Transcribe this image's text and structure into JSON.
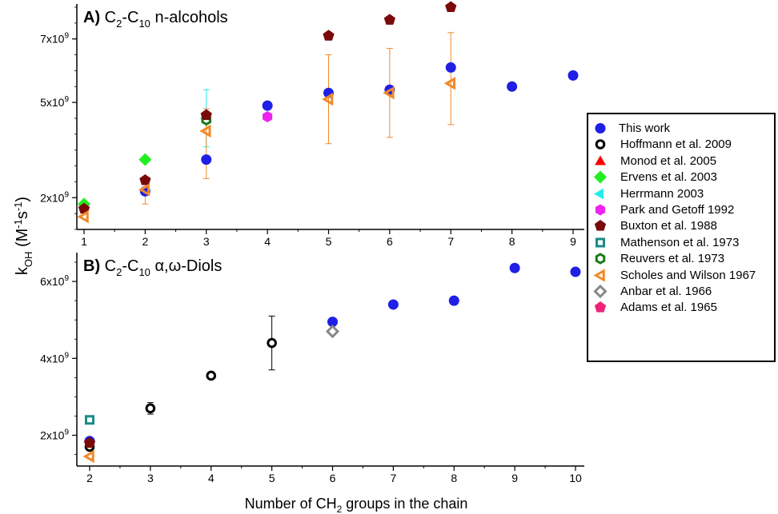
{
  "colors": {
    "this_work": "#1f1fe6",
    "hoffmann": "#000000",
    "monod": "#ff0000",
    "ervens": "#22ee22",
    "herrmann": "#22eeee",
    "park": "#ee22ee",
    "buxton": "#7a0a0a",
    "mathenson": "#1a8a8a",
    "reuvers": "#1a7a1a",
    "scholes": "#f08a2a",
    "anbar": "#888888",
    "adams": "#ee2277"
  },
  "chart_data": [
    {
      "panel": "A",
      "type": "scatter",
      "title_prefix": "A)",
      "title_main": "C",
      "title_sub1": "2",
      "title_mid": "-C",
      "title_sub2": "10",
      "title_rest": " n-alcohols",
      "x_ticks": [
        "1",
        "2",
        "3",
        "4",
        "5",
        "6",
        "7",
        "8",
        "9"
      ],
      "xlim": [
        1,
        9
      ],
      "ylim": [
        1000000000.0,
        8100000000.0
      ],
      "y_ticks": [
        {
          "value": 2000000000.0,
          "base": "2x10",
          "exp": "9"
        },
        {
          "value": 5000000000.0,
          "base": "5x10",
          "exp": "9"
        },
        {
          "value": 7000000000.0,
          "base": "7x10",
          "exp": "9"
        }
      ],
      "series": [
        {
          "key": "this_work",
          "marker": "circle",
          "points": [
            [
              2,
              2200000000.0
            ],
            [
              3,
              3200000000.0
            ],
            [
              4,
              4900000000.0
            ],
            [
              5,
              5300000000.0
            ],
            [
              6,
              5400000000.0
            ],
            [
              7,
              6100000000.0
            ],
            [
              8,
              5500000000.0
            ],
            [
              9,
              5850000000.0
            ]
          ]
        },
        {
          "key": "ervens",
          "marker": "diamond",
          "points": [
            [
              1,
              1800000000.0
            ],
            [
              2,
              3200000000.0
            ]
          ]
        },
        {
          "key": "herrmann",
          "marker": "triangle-left",
          "points": [
            [
              3,
              4500000000.0
            ]
          ],
          "err": [
            [
              3,
              5400000000.0,
              3600000000.0
            ]
          ]
        },
        {
          "key": "reuvers",
          "marker": "hexagon-open",
          "points": [
            [
              3,
              4450000000.0
            ]
          ]
        },
        {
          "key": "park",
          "marker": "hexagon",
          "points": [
            [
              4,
              4550000000.0
            ]
          ]
        },
        {
          "key": "buxton",
          "marker": "pentagon",
          "points": [
            [
              1,
              1650000000.0
            ],
            [
              2,
              2550000000.0
            ],
            [
              3,
              4600000000.0
            ],
            [
              5,
              7100000000.0
            ],
            [
              6,
              7600000000.0
            ],
            [
              7,
              8000000000.0
            ]
          ]
        },
        {
          "key": "scholes",
          "marker": "triangle-left-open",
          "points": [
            [
              1,
              1400000000.0
            ],
            [
              2,
              2250000000.0
            ],
            [
              3,
              4100000000.0
            ],
            [
              5,
              5100000000.0
            ],
            [
              6,
              5300000000.0
            ],
            [
              7,
              5600000000.0
            ]
          ],
          "err": [
            [
              2,
              2450000000.0,
              1800000000.0
            ],
            [
              3,
              4800000000.0,
              2600000000.0
            ],
            [
              5,
              6500000000.0,
              3700000000.0
            ],
            [
              6,
              6700000000.0,
              3900000000.0
            ],
            [
              7,
              7200000000.0,
              4300000000.0
            ]
          ]
        }
      ]
    },
    {
      "panel": "B",
      "type": "scatter",
      "title_prefix": "B)",
      "title_main": "C",
      "title_sub1": "2",
      "title_mid": "-C",
      "title_sub2": "10",
      "title_rest": " α,ω-Diols",
      "x_ticks": [
        "2",
        "3",
        "4",
        "5",
        "6",
        "7",
        "8",
        "9",
        "10"
      ],
      "xlim": [
        2,
        10
      ],
      "ylim": [
        1200000000.0,
        6750000000.0
      ],
      "y_ticks": [
        {
          "value": 2000000000.0,
          "base": "2x10",
          "exp": "9"
        },
        {
          "value": 4000000000.0,
          "base": "4x10",
          "exp": "9"
        },
        {
          "value": 6000000000.0,
          "base": "6x10",
          "exp": "9"
        }
      ],
      "series": [
        {
          "key": "this_work",
          "marker": "circle",
          "points": [
            [
              2,
              1850000000.0
            ],
            [
              6,
              4950000000.0
            ],
            [
              7,
              5400000000.0
            ],
            [
              8,
              5500000000.0
            ],
            [
              9,
              6350000000.0
            ],
            [
              10,
              6250000000.0
            ]
          ]
        },
        {
          "key": "hoffmann",
          "marker": "circle-open",
          "points": [
            [
              2,
              1700000000.0
            ],
            [
              3,
              2700000000.0
            ],
            [
              4,
              3550000000.0
            ],
            [
              5,
              4400000000.0
            ]
          ],
          "err": [
            [
              3,
              2850000000.0,
              2550000000.0
            ],
            [
              5,
              5100000000.0,
              3700000000.0
            ]
          ]
        },
        {
          "key": "mathenson",
          "marker": "square-open",
          "points": [
            [
              2,
              2400000000.0
            ]
          ]
        },
        {
          "key": "buxton",
          "marker": "pentagon",
          "points": [
            [
              2,
              1800000000.0
            ]
          ]
        },
        {
          "key": "anbar",
          "marker": "diamond-open",
          "points": [
            [
              6,
              4700000000.0
            ]
          ]
        },
        {
          "key": "scholes",
          "marker": "triangle-left-open",
          "points": [
            [
              2,
              1450000000.0
            ]
          ]
        }
      ]
    }
  ],
  "axis": {
    "x_label_pre": "Number of CH",
    "x_label_sub": "2",
    "x_label_post": " groups in the chain",
    "y_label_k": "k",
    "y_label_sub": "OH",
    "y_label_unit_open": " (M",
    "y_label_exp1": "-1",
    "y_label_s": "s",
    "y_label_exp2": "-1",
    "y_label_close": ")"
  },
  "legend": [
    {
      "key": "this_work",
      "marker": "circle",
      "label": "This work"
    },
    {
      "key": "hoffmann",
      "marker": "circle-open",
      "label": "Hoffmann et al. 2009"
    },
    {
      "key": "monod",
      "marker": "triangle-up",
      "label": "Monod et al. 2005"
    },
    {
      "key": "ervens",
      "marker": "diamond",
      "label": "Ervens et al. 2003"
    },
    {
      "key": "herrmann",
      "marker": "triangle-left",
      "label": "Herrmann 2003"
    },
    {
      "key": "park",
      "marker": "hexagon",
      "label": "Park and Getoff 1992"
    },
    {
      "key": "buxton",
      "marker": "pentagon",
      "label": "Buxton et al. 1988"
    },
    {
      "key": "mathenson",
      "marker": "square-open",
      "label": "Mathenson et al. 1973"
    },
    {
      "key": "reuvers",
      "marker": "hexagon-open",
      "label": "Reuvers et al. 1973"
    },
    {
      "key": "scholes",
      "marker": "triangle-left-open",
      "label": "Scholes and Wilson 1967"
    },
    {
      "key": "anbar",
      "marker": "diamond-open",
      "label": "Anbar et al. 1966"
    },
    {
      "key": "adams",
      "marker": "pentagon",
      "label": "Adams et al. 1965"
    }
  ]
}
